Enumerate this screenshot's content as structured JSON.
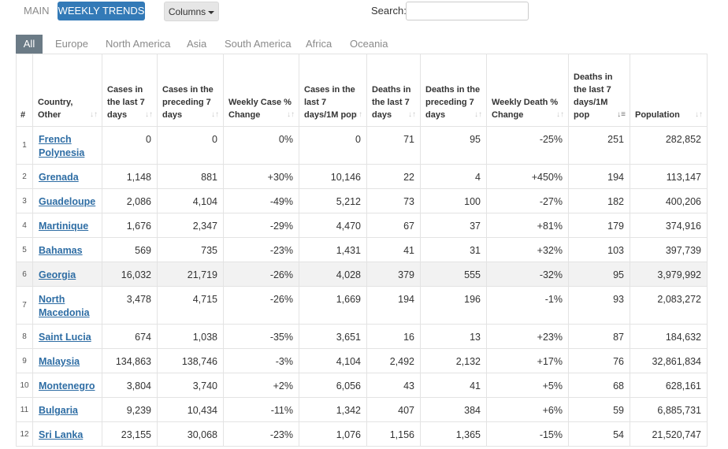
{
  "topbar": {
    "tab_main": "MAIN",
    "tab_weekly": "WEEKLY TRENDS",
    "columns_label": "Columns",
    "search_label": "Search:",
    "search_value": ""
  },
  "regions": [
    "All",
    "Europe",
    "North America",
    "Asia",
    "South America",
    "Africa",
    "Oceania"
  ],
  "colors": {
    "accent": "#337ab7",
    "region_active": "#6b7b86",
    "link": "#2e6da4",
    "highlight_row": "#f2f2f2"
  },
  "table": {
    "headers": {
      "idx": "#",
      "country": "Country, Other",
      "cases7": "Cases in the last 7 days",
      "casesPrev": "Cases in the preceding 7 days",
      "caseChange": "Weekly Case % Change",
      "cases1m": "Cases in the last 7 days/1M pop",
      "deaths7": "Deaths in the last 7 days",
      "deathsPrev": "Deaths in the preceding 7 days",
      "deathChange": "Weekly Death % Change",
      "deaths1m": "Deaths in the last 7 days/1M pop",
      "population": "Population"
    },
    "rows": [
      {
        "idx": "1",
        "country": "French Polynesia",
        "cases7": "0",
        "casesPrev": "0",
        "caseChange": "0%",
        "cases1m": "0",
        "deaths7": "71",
        "deathsPrev": "95",
        "deathChange": "-25%",
        "deaths1m": "251",
        "population": "282,852"
      },
      {
        "idx": "2",
        "country": "Grenada",
        "cases7": "1,148",
        "casesPrev": "881",
        "caseChange": "+30%",
        "cases1m": "10,146",
        "deaths7": "22",
        "deathsPrev": "4",
        "deathChange": "+450%",
        "deaths1m": "194",
        "population": "113,147"
      },
      {
        "idx": "3",
        "country": "Guadeloupe",
        "cases7": "2,086",
        "casesPrev": "4,104",
        "caseChange": "-49%",
        "cases1m": "5,212",
        "deaths7": "73",
        "deathsPrev": "100",
        "deathChange": "-27%",
        "deaths1m": "182",
        "population": "400,206"
      },
      {
        "idx": "4",
        "country": "Martinique",
        "cases7": "1,676",
        "casesPrev": "2,347",
        "caseChange": "-29%",
        "cases1m": "4,470",
        "deaths7": "67",
        "deathsPrev": "37",
        "deathChange": "+81%",
        "deaths1m": "179",
        "population": "374,916"
      },
      {
        "idx": "5",
        "country": "Bahamas",
        "cases7": "569",
        "casesPrev": "735",
        "caseChange": "-23%",
        "cases1m": "1,431",
        "deaths7": "41",
        "deathsPrev": "31",
        "deathChange": "+32%",
        "deaths1m": "103",
        "population": "397,739"
      },
      {
        "idx": "6",
        "country": "Georgia",
        "cases7": "16,032",
        "casesPrev": "21,719",
        "caseChange": "-26%",
        "cases1m": "4,028",
        "deaths7": "379",
        "deathsPrev": "555",
        "deathChange": "-32%",
        "deaths1m": "95",
        "population": "3,979,992"
      },
      {
        "idx": "7",
        "country": "North Macedonia",
        "cases7": "3,478",
        "casesPrev": "4,715",
        "caseChange": "-26%",
        "cases1m": "1,669",
        "deaths7": "194",
        "deathsPrev": "196",
        "deathChange": "-1%",
        "deaths1m": "93",
        "population": "2,083,272"
      },
      {
        "idx": "8",
        "country": "Saint Lucia",
        "cases7": "674",
        "casesPrev": "1,038",
        "caseChange": "-35%",
        "cases1m": "3,651",
        "deaths7": "16",
        "deathsPrev": "13",
        "deathChange": "+23%",
        "deaths1m": "87",
        "population": "184,632"
      },
      {
        "idx": "9",
        "country": "Malaysia",
        "cases7": "134,863",
        "casesPrev": "138,746",
        "caseChange": "-3%",
        "cases1m": "4,104",
        "deaths7": "2,492",
        "deathsPrev": "2,132",
        "deathChange": "+17%",
        "deaths1m": "76",
        "population": "32,861,834"
      },
      {
        "idx": "10",
        "country": "Montenegro",
        "cases7": "3,804",
        "casesPrev": "3,740",
        "caseChange": "+2%",
        "cases1m": "6,056",
        "deaths7": "43",
        "deathsPrev": "41",
        "deathChange": "+5%",
        "deaths1m": "68",
        "population": "628,161"
      },
      {
        "idx": "11",
        "country": "Bulgaria",
        "cases7": "9,239",
        "casesPrev": "10,434",
        "caseChange": "-11%",
        "cases1m": "1,342",
        "deaths7": "407",
        "deathsPrev": "384",
        "deathChange": "+6%",
        "deaths1m": "59",
        "population": "6,885,731"
      },
      {
        "idx": "12",
        "country": "Sri Lanka",
        "cases7": "23,155",
        "casesPrev": "30,068",
        "caseChange": "-23%",
        "cases1m": "1,076",
        "deaths7": "1,156",
        "deathsPrev": "1,365",
        "deathChange": "-15%",
        "deaths1m": "54",
        "population": "21,520,747"
      }
    ]
  }
}
